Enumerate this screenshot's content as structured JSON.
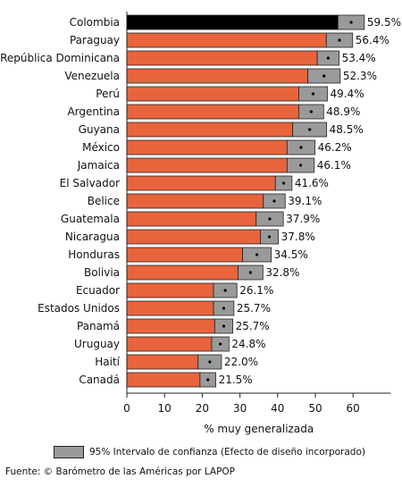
{
  "chart_data": {
    "type": "bar",
    "categories": [
      "Colombia",
      "Paraguay",
      "República Dominicana",
      "Venezuela",
      "Perú",
      "Argentina",
      "Guyana",
      "México",
      "Jamaica",
      "El Salvador",
      "Belice",
      "Guatemala",
      "Nicaragua",
      "Honduras",
      "Bolivia",
      "Ecuador",
      "Estados Unidos",
      "Panamá",
      "Uruguay",
      "Haití",
      "Canadá"
    ],
    "values": [
      59.5,
      56.4,
      53.4,
      52.3,
      49.4,
      48.9,
      48.5,
      46.2,
      46.1,
      41.6,
      39.1,
      37.9,
      37.8,
      34.5,
      32.8,
      26.1,
      25.7,
      25.7,
      24.8,
      22.0,
      21.5
    ],
    "value_labels": [
      "59.5%",
      "56.4%",
      "53.4%",
      "52.3%",
      "49.4%",
      "48.9%",
      "48.5%",
      "46.2%",
      "46.1%",
      "41.6%",
      "39.1%",
      "37.9%",
      "37.8%",
      "34.5%",
      "32.8%",
      "26.1%",
      "25.7%",
      "25.7%",
      "24.8%",
      "22.0%",
      "21.5%"
    ],
    "ci_lower": [
      56.0,
      52.9,
      50.5,
      48.0,
      45.6,
      45.6,
      44.0,
      42.5,
      42.5,
      39.4,
      36.2,
      34.3,
      35.4,
      30.7,
      29.5,
      23.0,
      23.0,
      23.3,
      22.5,
      18.9,
      19.4
    ],
    "ci_upper": [
      63.0,
      59.9,
      56.3,
      56.6,
      53.2,
      52.2,
      53.0,
      49.9,
      49.7,
      43.8,
      42.0,
      41.5,
      40.2,
      38.3,
      36.1,
      29.2,
      28.4,
      28.1,
      27.1,
      25.1,
      23.6
    ],
    "highlight_category": "Colombia",
    "xlabel": "% muy generalizada",
    "xticks": [
      0,
      10,
      20,
      30,
      40,
      50,
      60
    ],
    "xlim": [
      0,
      70
    ],
    "legend": {
      "label": "95% Intervalo de confianza (Efecto de diseño incorporado)",
      "position": "bottom"
    },
    "colors": {
      "bar": "#e8643c",
      "highlight": "#000000",
      "ci": "#9a9a9a",
      "outline": "#222222"
    }
  },
  "source": "Fuente: © Barómetro de las Américas por LAPOP"
}
